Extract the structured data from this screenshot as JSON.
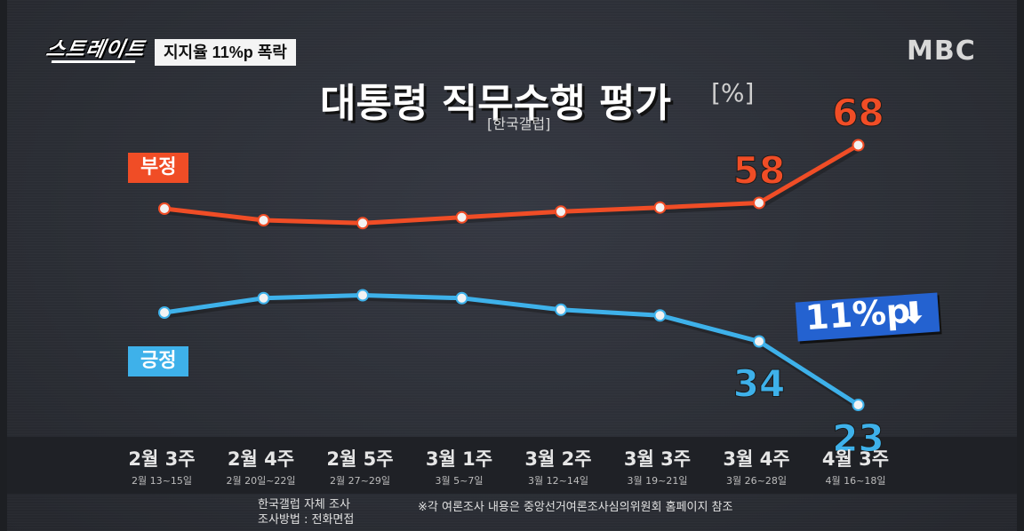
{
  "program": {
    "name": "스트레이트",
    "headline_tag": "지지율 11%p 폭락",
    "broadcaster": "MBC"
  },
  "title": "대통령 직무수행 평가",
  "unit": "[%]",
  "source": "[한국갤럽]",
  "footer": {
    "line1": "한국갤럽 자체 조사",
    "line2": "조사방법 : 전화면접",
    "note": "※각 여론조사 내용은 중앙선거여론조사심의위원회 홈페이지 참조"
  },
  "change_badge": {
    "text": "11%p",
    "arrow": "⬇"
  },
  "colors": {
    "negative": "#f04d26",
    "positive": "#3eb1ea",
    "change_box": "#2462d0"
  },
  "chart_data": {
    "type": "line",
    "categories": [
      "2월 3주",
      "2월 4주",
      "2월 5주",
      "3월 1주",
      "3월 2주",
      "3월 3주",
      "3월 4주",
      "4월 3주"
    ],
    "category_dates": [
      "2월 13~15일",
      "2월 20일~22일",
      "2월 27~29일",
      "3월 5~7일",
      "3월 12~14일",
      "3월 19~21일",
      "3월 26~28일",
      "4월 16~18일"
    ],
    "series": [
      {
        "name": "부정",
        "values": [
          57,
          55,
          54.5,
          55.5,
          56.5,
          57.2,
          58,
          68
        ],
        "color": "#f04d26"
      },
      {
        "name": "긍정",
        "values": [
          39,
          41.5,
          42,
          41.5,
          39.5,
          38.5,
          34,
          23
        ],
        "color": "#3eb1ea"
      }
    ],
    "data_labels": [
      {
        "series": "부정",
        "index": 6,
        "text": "58"
      },
      {
        "series": "부정",
        "index": 7,
        "text": "68"
      },
      {
        "series": "긍정",
        "index": 6,
        "text": "34"
      },
      {
        "series": "긍정",
        "index": 7,
        "text": "23"
      }
    ],
    "ylim": [
      15,
      75
    ],
    "grid": false
  }
}
